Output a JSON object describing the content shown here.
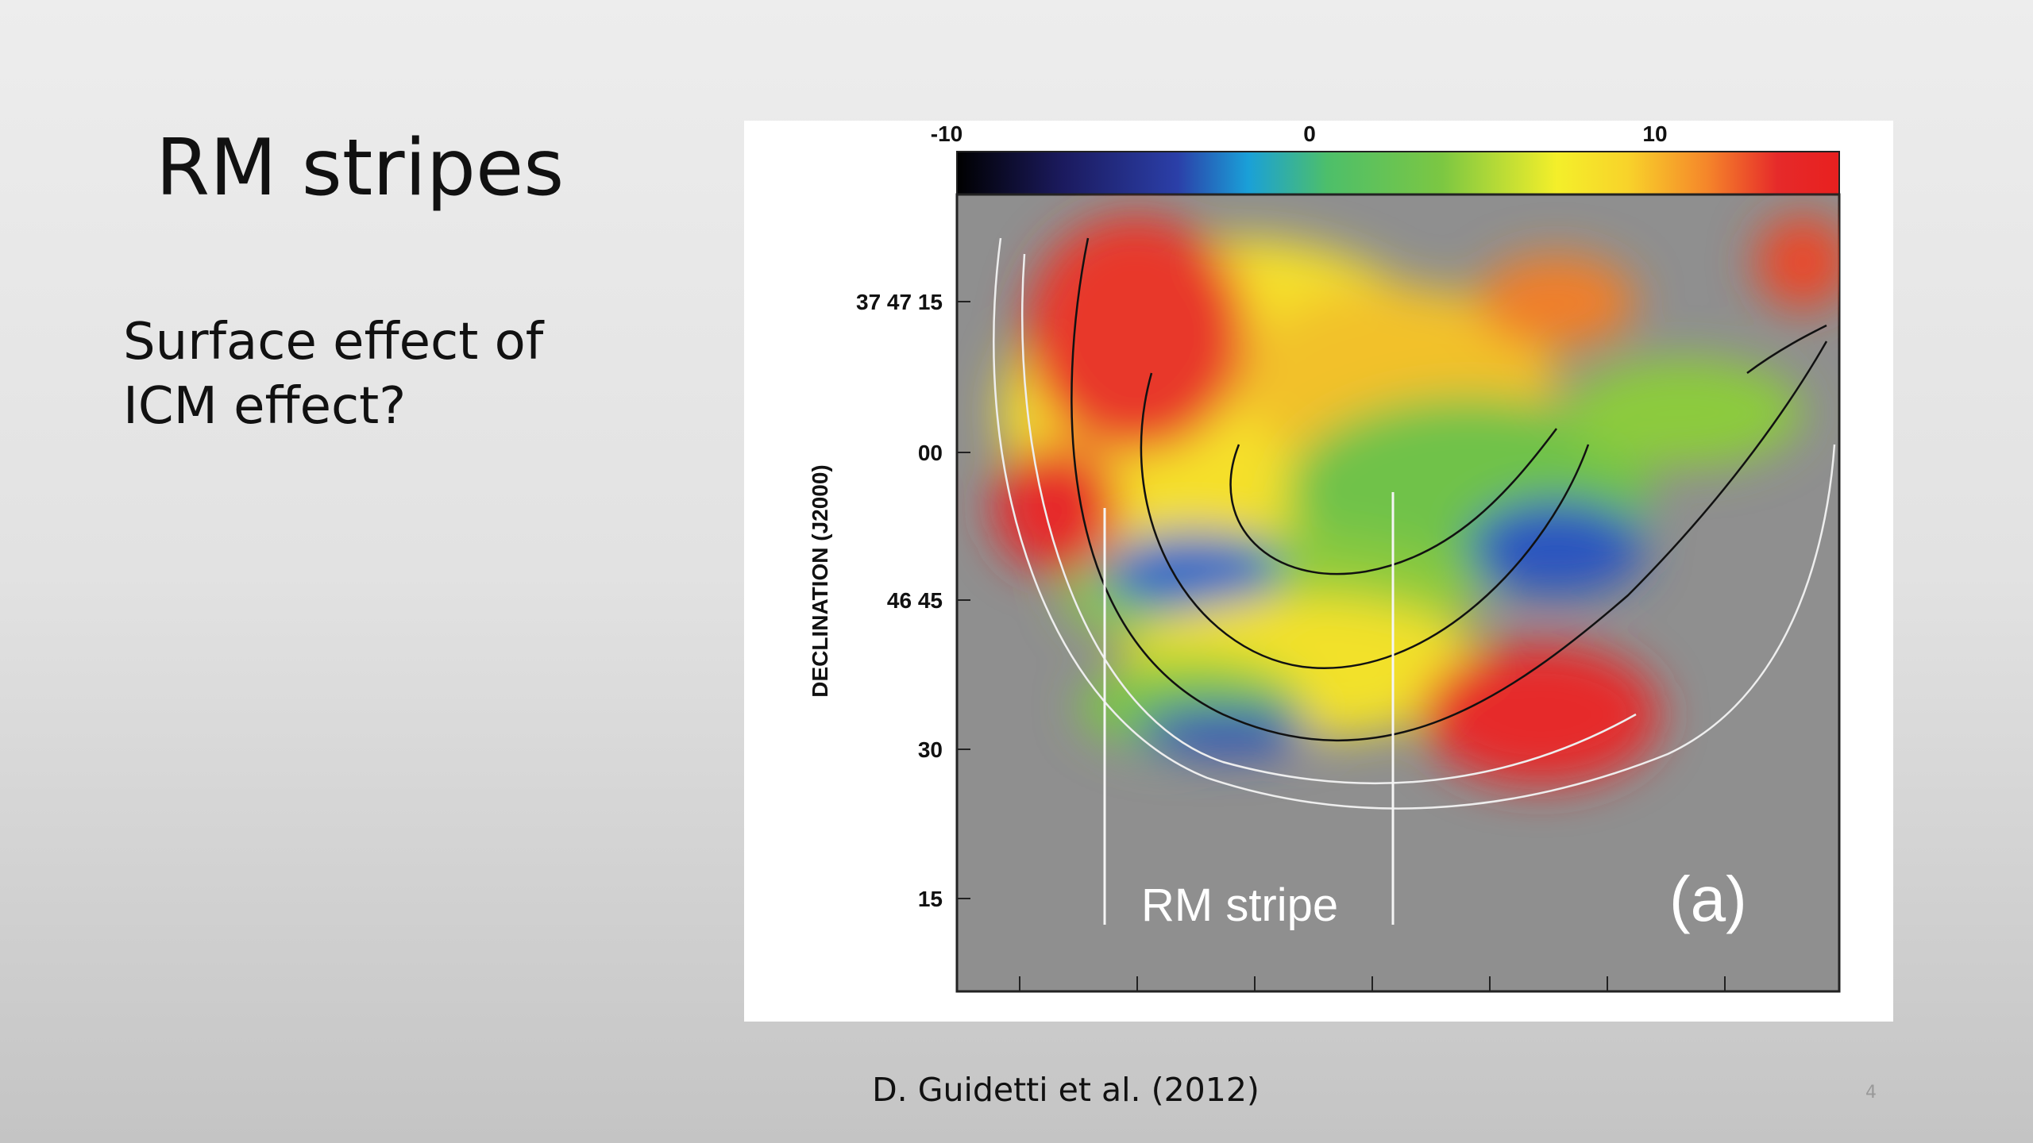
{
  "slide": {
    "title": "RM stripes",
    "body": [
      "Surface effect of",
      "ICM effect?"
    ],
    "caption": "D. Guidetti et al. (2012)",
    "page_number": "4"
  },
  "figure": {
    "colorbar_labels": [
      "-10",
      "0",
      "10"
    ],
    "y_axis_label": "DECLINATION (J2000)",
    "y_tick_labels": [
      "37 47 15",
      "00",
      "46 45",
      "30",
      "15"
    ],
    "annotations": [
      "RM stripe",
      "(a)"
    ]
  }
}
